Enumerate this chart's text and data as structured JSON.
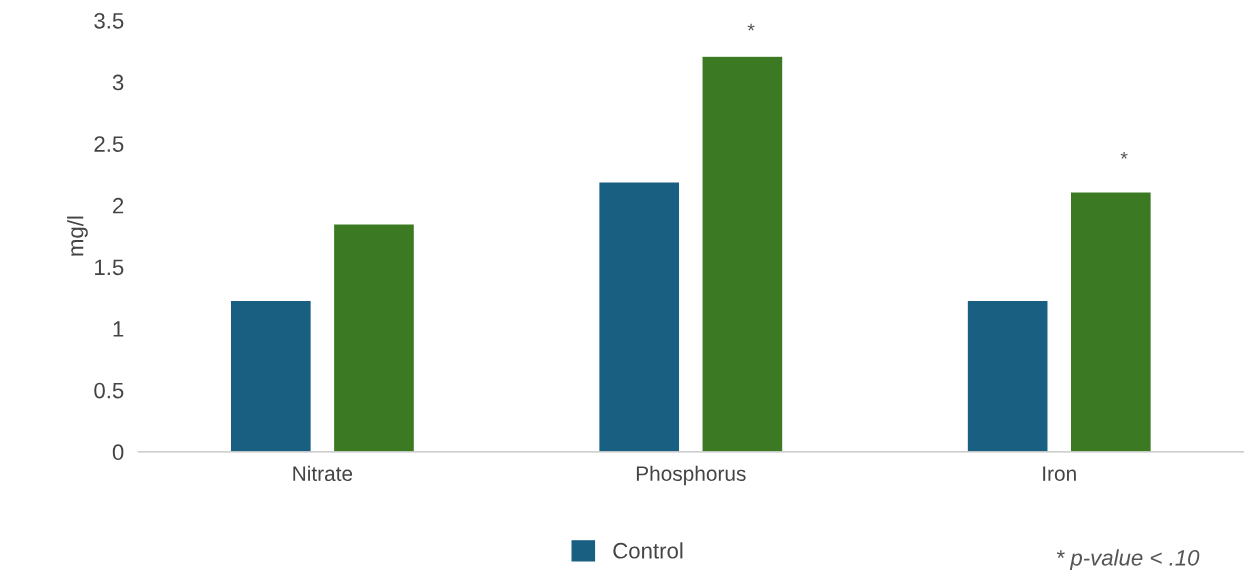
{
  "chart_data": {
    "type": "bar",
    "ylabel": "mg/l",
    "categories": [
      "Nitrate",
      "Phosphorus",
      "Iron"
    ],
    "series": [
      {
        "name": "Control",
        "color": "#185f82",
        "values": [
          1.23,
          2.19,
          1.23
        ]
      },
      {
        "color": "#3b7a23",
        "values": [
          1.85,
          3.21,
          2.11
        ]
      }
    ],
    "ylim": [
      0,
      3.5
    ],
    "yticks": [
      0,
      0.5,
      1,
      1.5,
      2,
      2.5,
      3,
      3.5
    ],
    "grid": false,
    "legend": "bottom",
    "annotations": [
      "*",
      "*",
      "* p-value < .10"
    ]
  }
}
